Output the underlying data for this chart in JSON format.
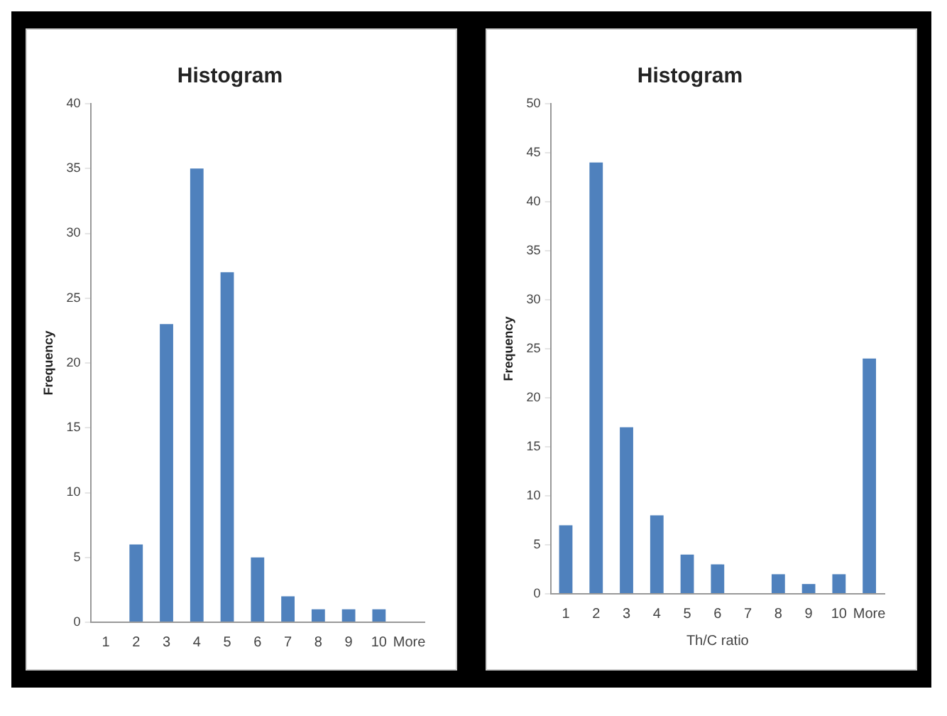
{
  "chart_data": [
    {
      "type": "bar",
      "title": "Histogram",
      "ylabel": "Frequency",
      "categories": [
        "1",
        "2",
        "3",
        "4",
        "5",
        "6",
        "7",
        "8",
        "9",
        "10",
        "More"
      ],
      "series": [
        {
          "color": "#4f81bd",
          "values": [
            0,
            6,
            23,
            35,
            27,
            5,
            2,
            1,
            1,
            1,
            0
          ]
        }
      ],
      "ylim": [
        0,
        40
      ],
      "yticks": [
        0,
        5,
        10,
        15,
        20,
        25,
        30,
        35,
        40
      ],
      "grid": false,
      "legend": false
    },
    {
      "type": "bar",
      "title": "Histogram",
      "ylabel": "Frequency",
      "xlabel": "Th/C ratio",
      "categories": [
        "1",
        "2",
        "3",
        "4",
        "5",
        "6",
        "7",
        "8",
        "9",
        "10",
        "More"
      ],
      "series": [
        {
          "color": "#4f81bd",
          "values": [
            7,
            44,
            17,
            8,
            4,
            3,
            0,
            2,
            1,
            2,
            24
          ]
        }
      ],
      "ylim": [
        0,
        50
      ],
      "yticks": [
        0,
        5,
        10,
        15,
        20,
        25,
        30,
        35,
        40,
        45,
        50
      ],
      "grid": false,
      "legend": false
    }
  ]
}
